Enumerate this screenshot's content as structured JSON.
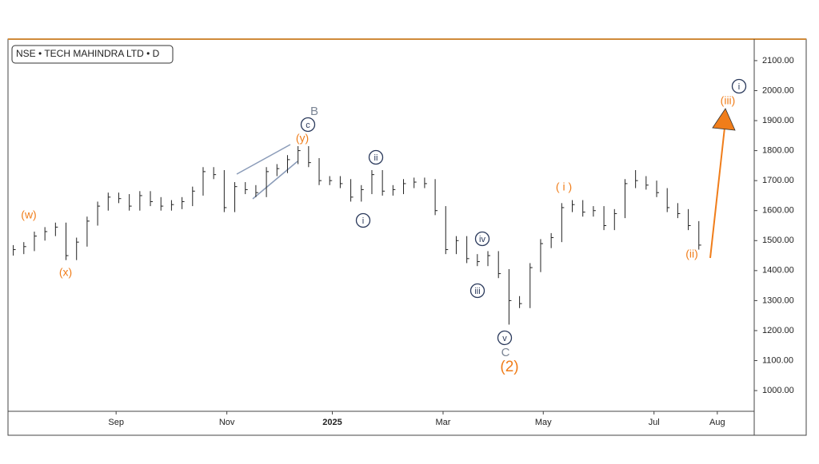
{
  "chart_data": {
    "type": "hlc",
    "title": "NSE • TECH MAHINDRA LTD • D",
    "color": "#222222",
    "x": [
      2,
      6,
      10,
      14,
      18,
      22,
      26,
      30,
      34,
      38,
      42,
      46,
      50,
      54,
      58,
      62,
      66,
      70,
      74,
      78,
      82,
      86,
      90,
      94,
      98,
      102,
      106,
      110,
      114,
      118,
      122,
      126,
      130,
      134,
      138,
      142,
      146,
      150,
      154,
      158,
      162,
      166,
      170,
      174,
      178,
      182,
      186,
      190,
      194,
      198,
      202,
      206,
      210,
      214,
      218,
      222,
      226,
      230,
      234,
      238,
      242,
      246,
      250,
      254,
      258,
      262
    ],
    "high": [
      1485,
      1495,
      1530,
      1545,
      1560,
      1560,
      1510,
      1580,
      1630,
      1660,
      1660,
      1655,
      1665,
      1665,
      1645,
      1635,
      1645,
      1680,
      1745,
      1745,
      1735,
      1695,
      1695,
      1685,
      1745,
      1755,
      1785,
      1815,
      1815,
      1775,
      1715,
      1715,
      1705,
      1685,
      1735,
      1735,
      1685,
      1705,
      1710,
      1710,
      1705,
      1615,
      1515,
      1515,
      1455,
      1465,
      1465,
      1405,
      1315,
      1425,
      1505,
      1525,
      1625,
      1635,
      1635,
      1615,
      1615,
      1605,
      1705,
      1735,
      1715,
      1700,
      1675,
      1625,
      1605,
      1565
    ],
    "low": [
      1450,
      1455,
      1465,
      1500,
      1515,
      1435,
      1435,
      1480,
      1550,
      1600,
      1625,
      1600,
      1600,
      1615,
      1600,
      1600,
      1605,
      1615,
      1650,
      1705,
      1595,
      1595,
      1655,
      1645,
      1645,
      1715,
      1725,
      1755,
      1745,
      1685,
      1685,
      1675,
      1630,
      1630,
      1655,
      1650,
      1650,
      1655,
      1675,
      1675,
      1585,
      1455,
      1455,
      1425,
      1415,
      1415,
      1375,
      1220,
      1275,
      1275,
      1395,
      1475,
      1495,
      1595,
      1580,
      1580,
      1535,
      1535,
      1575,
      1675,
      1670,
      1645,
      1595,
      1575,
      1535,
      1470
    ],
    "close": [
      1470,
      1480,
      1515,
      1530,
      1545,
      1450,
      1495,
      1565,
      1615,
      1645,
      1640,
      1615,
      1650,
      1630,
      1615,
      1620,
      1630,
      1665,
      1730,
      1720,
      1610,
      1680,
      1670,
      1660,
      1730,
      1740,
      1770,
      1800,
      1760,
      1700,
      1700,
      1690,
      1645,
      1670,
      1720,
      1665,
      1670,
      1690,
      1695,
      1690,
      1600,
      1470,
      1500,
      1440,
      1430,
      1450,
      1390,
      1300,
      1290,
      1410,
      1490,
      1510,
      1610,
      1620,
      1595,
      1600,
      1550,
      1590,
      1690,
      1700,
      1685,
      1660,
      1610,
      1590,
      1550,
      1485
    ],
    "xlim": [
      0,
      283
    ],
    "xticks": [
      {
        "value": 41,
        "label": "Sep"
      },
      {
        "value": 83,
        "label": "Nov"
      },
      {
        "value": 123,
        "label": "2025"
      },
      {
        "value": 165,
        "label": "Mar"
      },
      {
        "value": 203,
        "label": "May"
      },
      {
        "value": 245,
        "label": "Jul"
      },
      {
        "value": 269,
        "label": "Aug"
      }
    ],
    "ylim": [
      931,
      2169
    ],
    "yticks": [
      {
        "value": 1000,
        "label": "1000.00"
      },
      {
        "value": 1100,
        "label": "1100.00"
      },
      {
        "value": 1200,
        "label": "1200.00"
      },
      {
        "value": 1300,
        "label": "1300.00"
      },
      {
        "value": 1400,
        "label": "1400.00"
      },
      {
        "value": 1500,
        "label": "1500.00"
      },
      {
        "value": 1600,
        "label": "1600.00"
      },
      {
        "value": 1700,
        "label": "1700.00"
      },
      {
        "value": 1800,
        "label": "1800.00"
      },
      {
        "value": 1900,
        "label": "1900.00"
      },
      {
        "value": 2000,
        "label": "2000.00"
      },
      {
        "value": 2100,
        "label": "2100.00"
      }
    ],
    "annotations": [
      "(w)",
      "(x)",
      "(y)",
      "B",
      "c",
      "ii",
      "i",
      "iv",
      "iii",
      "v",
      "C",
      "(2)",
      "( i )",
      "(ii)",
      "(iii)",
      "i"
    ]
  }
}
